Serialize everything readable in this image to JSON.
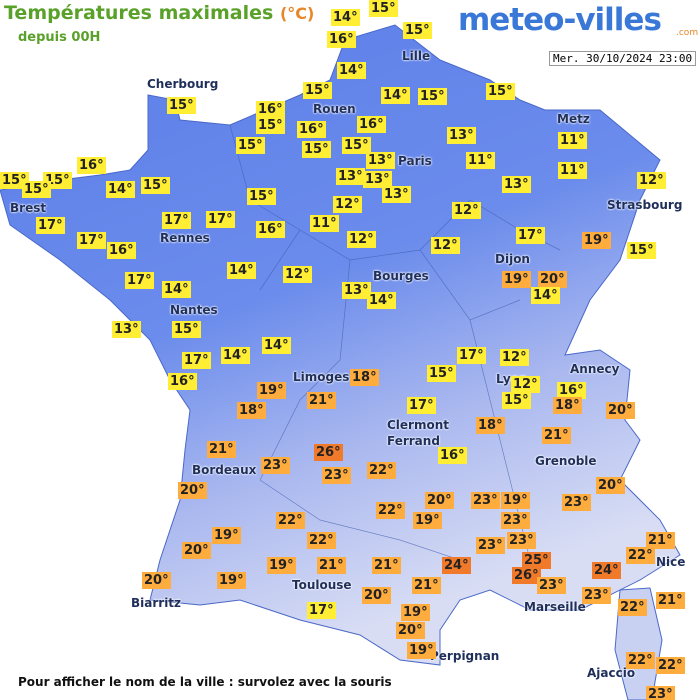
{
  "header": {
    "title": "Températures maximales",
    "unit": "(°C)",
    "subtitle": "depuis 00H",
    "logo": "meteo-villes",
    "logo_suffix": ".com",
    "timestamp": "Mer. 30/10/2024 23:00"
  },
  "cities": [
    "Cherbourg",
    "Lille",
    "Rouen",
    "Paris",
    "Metz",
    "Strasbourg",
    "Brest",
    "Rennes",
    "Nantes",
    "Dijon",
    "Bourges",
    "Limoges",
    "Annecy",
    "Lyon",
    "Clermont",
    "Ferrand",
    "Grenoble",
    "Bordeaux",
    "Toulouse",
    "Nice",
    "Biarritz",
    "Marseille",
    "Perpignan",
    "Ajaccio"
  ],
  "temperatures": [
    "14°",
    "15°",
    "16°",
    "15°",
    "14°",
    "15°",
    "14°",
    "15°",
    "15°",
    "15°",
    "16°",
    "15°",
    "16°",
    "16°",
    "15°",
    "15°",
    "15°",
    "13°",
    "11°",
    "13°",
    "11°",
    "16°",
    "15°",
    "15°",
    "15°",
    "14°",
    "15°",
    "13°",
    "13°",
    "11°",
    "13°",
    "12°",
    "15°",
    "13°",
    "17°",
    "17°",
    "17°",
    "16°",
    "11°",
    "12°",
    "12°",
    "17°",
    "16°",
    "12°",
    "12°",
    "17°",
    "19°",
    "15°",
    "14°",
    "12°",
    "17°",
    "14°",
    "19°",
    "20°",
    "14°",
    "13°",
    "14°",
    "13°",
    "15°",
    "14°",
    "14°",
    "17°",
    "17°",
    "12°",
    "16°",
    "19°",
    "18°",
    "15°",
    "12°",
    "16°",
    "15°",
    "18°",
    "18°",
    "21°",
    "17°",
    "18°",
    "20°",
    "21°",
    "21°",
    "26°",
    "23°",
    "23°",
    "22°",
    "16°",
    "20°",
    "20°",
    "20°",
    "23°",
    "19°",
    "22°",
    "22°",
    "19°",
    "23°",
    "23°",
    "19°",
    "22°",
    "23°",
    "23°",
    "21°",
    "20°",
    "22°",
    "25°",
    "19°",
    "21°",
    "21°",
    "24°",
    "26°",
    "24°",
    "20°",
    "19°",
    "21°",
    "23°",
    "23°",
    "20°",
    "22°",
    "21°",
    "17°",
    "19°",
    "20°",
    "19°",
    "22°",
    "22°",
    "23°"
  ],
  "footer": "Pour afficher le nom de la ville : survolez avec la souris"
}
